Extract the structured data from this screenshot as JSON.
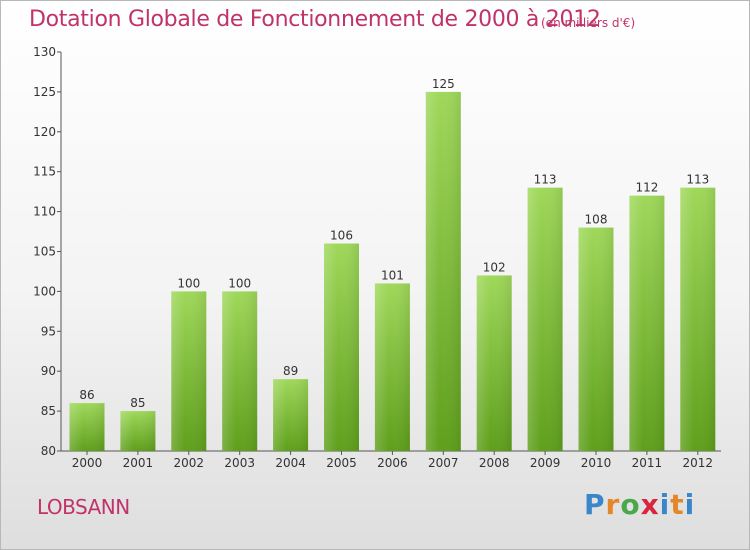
{
  "chart_data": {
    "type": "bar",
    "title": "Dotation Globale de Fonctionnement de 2000 à 2012",
    "subtitle": "(en milliers d'€)",
    "categories": [
      "2000",
      "2001",
      "2002",
      "2003",
      "2004",
      "2005",
      "2006",
      "2007",
      "2008",
      "2009",
      "2010",
      "2011",
      "2012"
    ],
    "values": [
      86,
      85,
      100,
      100,
      89,
      106,
      101,
      125,
      102,
      113,
      108,
      112,
      113
    ],
    "ylim": [
      80,
      130
    ],
    "yticks": [
      80,
      85,
      90,
      95,
      100,
      105,
      110,
      115,
      120,
      125,
      130
    ],
    "grid": false,
    "bar_color": "#7fc23b",
    "xlabel": "",
    "ylabel": ""
  },
  "commune": "LOBSANN",
  "logo": {
    "text": "Proxiti"
  },
  "colors": {
    "title": "#c0336a",
    "bar_top": "#9fd85a",
    "bar_bottom": "#5e9f1b"
  }
}
